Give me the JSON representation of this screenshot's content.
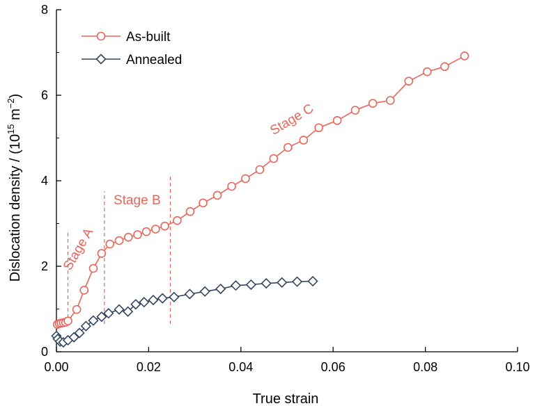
{
  "chart_data": {
    "type": "line",
    "xlabel": "True strain",
    "ylabel": "Dislocation density / (10",
    "ylabel_sup": "15",
    "ylabel_unit": " m",
    "ylabel_unit_sup": "−2",
    "ylabel_close": ")",
    "xlim": [
      0,
      0.1
    ],
    "ylim": [
      0,
      8
    ],
    "xticks": [
      0.0,
      0.02,
      0.04,
      0.06,
      0.08,
      0.1
    ],
    "xtick_labels": [
      "0.00",
      "0.02",
      "0.04",
      "0.06",
      "0.08",
      "0.10"
    ],
    "yticks": [
      0,
      2,
      4,
      6,
      8
    ],
    "ytick_labels": [
      "0",
      "2",
      "4",
      "6",
      "8"
    ],
    "grid": false,
    "legend_position": "top-left",
    "series": [
      {
        "name": "As-built",
        "color": "#e8655a",
        "marker": "circle",
        "points": [
          [
            0.0002,
            0.64
          ],
          [
            0.0006,
            0.66
          ],
          [
            0.001,
            0.67
          ],
          [
            0.0015,
            0.68
          ],
          [
            0.002,
            0.69
          ],
          [
            0.0025,
            0.72
          ],
          [
            0.0044,
            0.99
          ],
          [
            0.006,
            1.44
          ],
          [
            0.008,
            1.95
          ],
          [
            0.0098,
            2.3
          ],
          [
            0.0116,
            2.52
          ],
          [
            0.0136,
            2.6
          ],
          [
            0.0156,
            2.68
          ],
          [
            0.0176,
            2.74
          ],
          [
            0.0195,
            2.81
          ],
          [
            0.0215,
            2.87
          ],
          [
            0.0235,
            2.94
          ],
          [
            0.0262,
            3.07
          ],
          [
            0.029,
            3.28
          ],
          [
            0.0318,
            3.48
          ],
          [
            0.0349,
            3.66
          ],
          [
            0.038,
            3.87
          ],
          [
            0.041,
            4.05
          ],
          [
            0.0441,
            4.26
          ],
          [
            0.0471,
            4.52
          ],
          [
            0.0502,
            4.78
          ],
          [
            0.0536,
            4.95
          ],
          [
            0.0569,
            5.24
          ],
          [
            0.0609,
            5.41
          ],
          [
            0.0648,
            5.65
          ],
          [
            0.0686,
            5.81
          ],
          [
            0.0724,
            5.88
          ],
          [
            0.0764,
            6.33
          ],
          [
            0.0804,
            6.55
          ],
          [
            0.0842,
            6.67
          ],
          [
            0.0885,
            6.92
          ]
        ]
      },
      {
        "name": "Annealed",
        "color": "#34465f",
        "marker": "diamond",
        "points": [
          [
            0.0,
            0.37
          ],
          [
            0.0003,
            0.3
          ],
          [
            0.0008,
            0.24
          ],
          [
            0.0015,
            0.22
          ],
          [
            0.0025,
            0.27
          ],
          [
            0.0038,
            0.34
          ],
          [
            0.005,
            0.44
          ],
          [
            0.0064,
            0.6
          ],
          [
            0.008,
            0.73
          ],
          [
            0.0098,
            0.82
          ],
          [
            0.0113,
            0.9
          ],
          [
            0.0136,
            0.99
          ],
          [
            0.0155,
            0.94
          ],
          [
            0.0172,
            1.11
          ],
          [
            0.019,
            1.16
          ],
          [
            0.021,
            1.21
          ],
          [
            0.023,
            1.25
          ],
          [
            0.0255,
            1.28
          ],
          [
            0.0289,
            1.35
          ],
          [
            0.0322,
            1.41
          ],
          [
            0.0356,
            1.47
          ],
          [
            0.0389,
            1.55
          ],
          [
            0.0422,
            1.57
          ],
          [
            0.0455,
            1.6
          ],
          [
            0.0489,
            1.62
          ],
          [
            0.0522,
            1.64
          ],
          [
            0.0556,
            1.65
          ]
        ]
      }
    ],
    "stage_boundaries": [
      0.0025,
      0.0104,
      0.0247
    ],
    "annotations": [
      {
        "text": "Stage A",
        "x": 0.0055,
        "y": 2.35,
        "rotation": -60
      },
      {
        "text": "Stage B",
        "x": 0.0175,
        "y": 3.45,
        "rotation": 0
      },
      {
        "text": "Stage C",
        "x": 0.0515,
        "y": 5.35,
        "rotation": -31
      }
    ]
  }
}
